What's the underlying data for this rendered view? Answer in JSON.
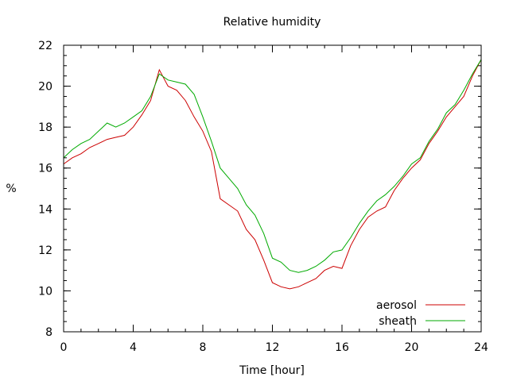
{
  "chart_data": {
    "type": "line",
    "title": "Relative humidity",
    "xlabel": "Time [hour]",
    "ylabel": "%",
    "xlim": [
      0,
      24
    ],
    "ylim": [
      8,
      22
    ],
    "xticks": [
      0,
      4,
      8,
      12,
      16,
      20,
      24
    ],
    "yticks": [
      8,
      10,
      12,
      14,
      16,
      18,
      20,
      22
    ],
    "x_minor_step": 1,
    "y_minor_step": 0.5,
    "grid": false,
    "legend_position": "bottom-right",
    "x": [
      0,
      0.5,
      1,
      1.5,
      2,
      2.5,
      3,
      3.5,
      4,
      4.5,
      5,
      5.5,
      6,
      6.5,
      7,
      7.5,
      8,
      8.5,
      9,
      9.5,
      10,
      10.5,
      11,
      11.5,
      12,
      12.5,
      13,
      13.5,
      14,
      14.5,
      15,
      15.5,
      16,
      16.5,
      17,
      17.5,
      18,
      18.5,
      19,
      19.5,
      20,
      20.5,
      21,
      21.5,
      22,
      22.5,
      23,
      23.5,
      24
    ],
    "series": [
      {
        "name": "aerosol",
        "color": "#cc0000",
        "values": [
          16.2,
          16.5,
          16.7,
          17.0,
          17.2,
          17.4,
          17.5,
          17.6,
          18.0,
          18.6,
          19.3,
          20.8,
          20.0,
          19.8,
          19.3,
          18.5,
          17.8,
          16.8,
          14.5,
          14.2,
          13.9,
          13.0,
          12.5,
          11.5,
          10.4,
          10.2,
          10.1,
          10.2,
          10.4,
          10.6,
          11.0,
          11.2,
          11.1,
          12.2,
          13.0,
          13.6,
          13.9,
          14.1,
          14.9,
          15.5,
          16.0,
          16.4,
          17.2,
          17.8,
          18.5,
          19.0,
          19.5,
          20.5,
          21.3
        ]
      },
      {
        "name": "sheath",
        "color": "#00aa00",
        "values": [
          16.5,
          16.9,
          17.2,
          17.4,
          17.8,
          18.2,
          18.0,
          18.2,
          18.5,
          18.8,
          19.5,
          20.6,
          20.3,
          20.2,
          20.1,
          19.6,
          18.5,
          17.3,
          16.0,
          15.5,
          15.0,
          14.2,
          13.7,
          12.8,
          11.6,
          11.4,
          11.0,
          10.9,
          11.0,
          11.2,
          11.5,
          11.9,
          12.0,
          12.6,
          13.3,
          13.9,
          14.4,
          14.7,
          15.1,
          15.6,
          16.2,
          16.5,
          17.3,
          17.9,
          18.7,
          19.1,
          19.8,
          20.6,
          21.3
        ]
      }
    ]
  }
}
